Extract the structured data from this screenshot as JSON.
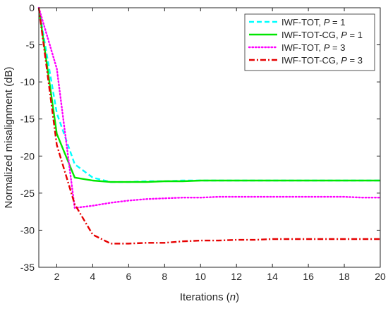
{
  "chart_data": {
    "type": "line",
    "title": "",
    "xlabel": "Iterations",
    "xlabel_var": "n",
    "ylabel": "Normalized misalignment (dB)",
    "xlim": [
      1,
      20
    ],
    "ylim": [
      -35,
      0
    ],
    "xticks": [
      2,
      4,
      6,
      8,
      10,
      12,
      14,
      16,
      18,
      20
    ],
    "yticks": [
      0,
      -5,
      -10,
      -15,
      -20,
      -25,
      -30,
      -35
    ],
    "grid": false,
    "legend_position": "top-right",
    "series": [
      {
        "name": "IWF-TOT, P = 1",
        "label_base": "IWF-TOT, ",
        "label_var": "P",
        "label_value": " = 1",
        "color": "#00FFFF",
        "dash": "dashed",
        "x": [
          1,
          2,
          3,
          4,
          5,
          6,
          7,
          8,
          9,
          10,
          11,
          12,
          13,
          14,
          15,
          16,
          17,
          18,
          19,
          20
        ],
        "y": [
          0,
          -14.2,
          -21.1,
          -22.9,
          -23.5,
          -23.5,
          -23.4,
          -23.4,
          -23.3,
          -23.3,
          -23.3,
          -23.3,
          -23.3,
          -23.3,
          -23.3,
          -23.3,
          -23.3,
          -23.3,
          -23.3,
          -23.3
        ]
      },
      {
        "name": "IWF-TOT-CG, P = 1",
        "label_base": "IWF-TOT-CG, ",
        "label_var": "P",
        "label_value": " = 1",
        "color": "#00E600",
        "dash": "solid",
        "x": [
          1,
          2,
          3,
          4,
          5,
          6,
          7,
          8,
          9,
          10,
          11,
          12,
          13,
          14,
          15,
          16,
          17,
          18,
          19,
          20
        ],
        "y": [
          0,
          -17.0,
          -22.9,
          -23.3,
          -23.5,
          -23.5,
          -23.5,
          -23.4,
          -23.4,
          -23.3,
          -23.3,
          -23.3,
          -23.3,
          -23.3,
          -23.3,
          -23.3,
          -23.3,
          -23.3,
          -23.3,
          -23.3
        ]
      },
      {
        "name": "IWF-TOT, P = 3",
        "label_base": "IWF-TOT, ",
        "label_var": "P",
        "label_value": " = 3",
        "color": "#FF00FF",
        "dash": "dotted",
        "x": [
          1,
          2,
          3,
          4,
          5,
          6,
          7,
          8,
          9,
          10,
          11,
          12,
          13,
          14,
          15,
          16,
          17,
          18,
          19,
          20
        ],
        "y": [
          0,
          -8.2,
          -27.0,
          -26.7,
          -26.3,
          -26.0,
          -25.8,
          -25.7,
          -25.6,
          -25.6,
          -25.5,
          -25.5,
          -25.5,
          -25.5,
          -25.5,
          -25.5,
          -25.5,
          -25.5,
          -25.6,
          -25.6
        ]
      },
      {
        "name": "IWF-TOT-CG, P = 3",
        "label_base": "IWF-TOT-CG, ",
        "label_var": "P",
        "label_value": " = 3",
        "color": "#E60000",
        "dash": "dashdot",
        "x": [
          1,
          2,
          3,
          4,
          5,
          6,
          7,
          8,
          9,
          10,
          11,
          12,
          13,
          14,
          15,
          16,
          17,
          18,
          19,
          20
        ],
        "y": [
          0,
          -18.5,
          -26.5,
          -30.6,
          -31.8,
          -31.8,
          -31.7,
          -31.7,
          -31.5,
          -31.4,
          -31.4,
          -31.3,
          -31.3,
          -31.2,
          -31.2,
          -31.2,
          -31.2,
          -31.2,
          -31.2,
          -31.2
        ]
      }
    ]
  }
}
